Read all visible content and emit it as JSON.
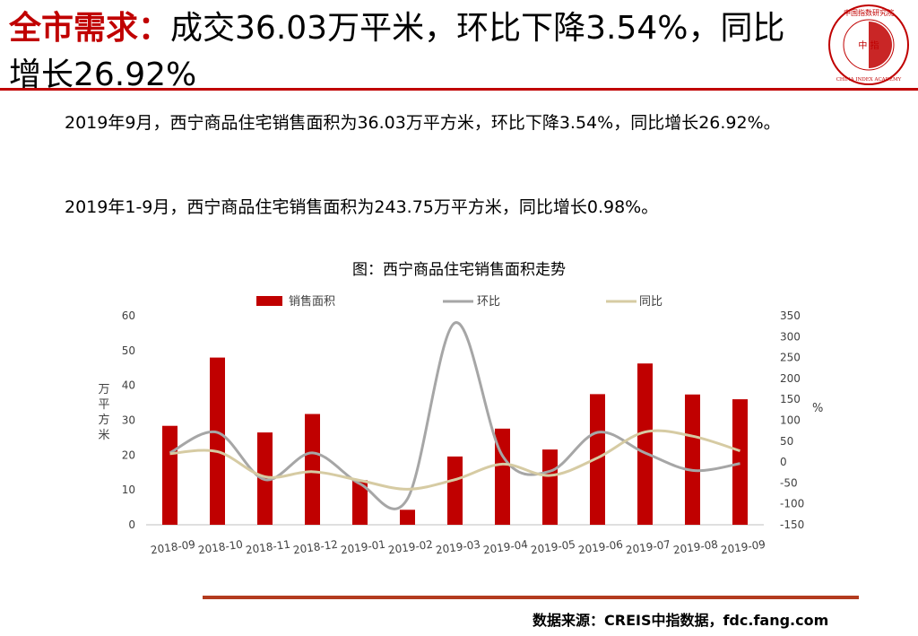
{
  "header": {
    "title_highlight": "全市需求：",
    "title_rest": "成交36.03万平米，环比下降3.54%，同比增长26.92%",
    "logo_text_top": "中国指数研究院",
    "logo_text_mid": "中 指",
    "logo_text_bottom": "CHINA INDEX ACADEMY"
  },
  "body": {
    "para1": "2019年9月，西宁商品住宅销售面积为36.03万平方米，环比下降3.54%，同比增长26.92%。",
    "para2": "2019年1-9月，西宁商品住宅销售面积为243.75万平方米，同比增长0.98%。"
  },
  "colors": {
    "accent": "#c00000",
    "bar": "#c00000",
    "mom_line": "#a6a6a6",
    "yoy_line": "#d6cba3",
    "rule_bottom": "#b33b1f"
  },
  "chart_data": {
    "type": "bar",
    "title": "图：西宁商品住宅销售面积走势",
    "categories": [
      "2018-09",
      "2018-10",
      "2018-11",
      "2018-12",
      "2019-01",
      "2019-02",
      "2019-03",
      "2019-04",
      "2019-05",
      "2019-06",
      "2019-07",
      "2019-08",
      "2019-09"
    ],
    "series": [
      {
        "name": "销售面积",
        "type": "bar",
        "axis": "left",
        "values": [
          28.4,
          48.0,
          26.5,
          31.8,
          12.8,
          4.3,
          19.6,
          27.6,
          21.6,
          37.5,
          46.3,
          37.4,
          36.03
        ]
      },
      {
        "name": "环比",
        "type": "line",
        "axis": "right",
        "values": [
          22,
          71,
          -42,
          22,
          -52,
          -88,
          333,
          15,
          -22,
          71,
          22,
          -20,
          -3.54
        ]
      },
      {
        "name": "同比",
        "type": "line",
        "axis": "right",
        "values": [
          20,
          25,
          -35,
          -23,
          -44,
          -65,
          -42,
          -5,
          -32,
          10,
          72,
          62,
          26.92
        ]
      }
    ],
    "ylabel": "万平方米",
    "ylabel_right": "%",
    "ylim": [
      0,
      60
    ],
    "yticks": [
      0,
      10,
      20,
      30,
      40,
      50,
      60
    ],
    "ylim_right": [
      -150,
      350
    ],
    "yticks_right": [
      -150,
      -100,
      -50,
      0,
      50,
      100,
      150,
      200,
      250,
      300,
      350
    ],
    "legend": "top",
    "grid": false
  },
  "footer": {
    "source": "数据来源：CREIS中指数据，fdc.fang.com"
  }
}
